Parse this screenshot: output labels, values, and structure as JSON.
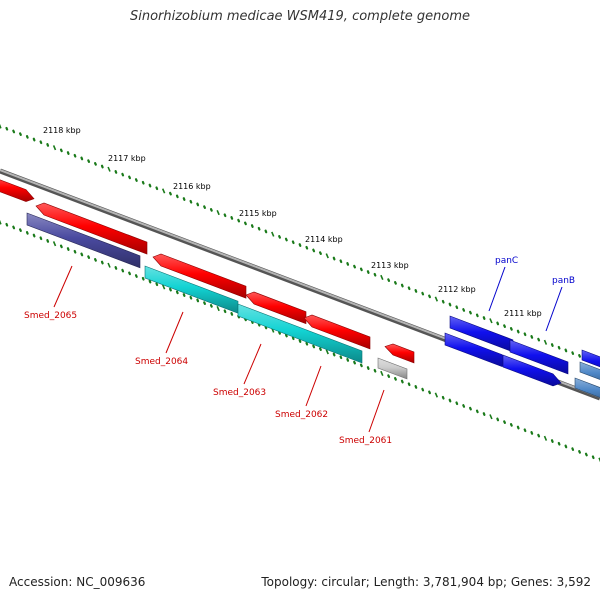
{
  "title": "Sinorhizobium medicae WSM419, complete genome",
  "footer": {
    "accession": "Accession: NC_009636",
    "summary": "Topology: circular; Length: 3,781,904 bp; Genes: 3,592"
  },
  "colors": {
    "backbone": "#888888",
    "tick": "#1a7a1a",
    "forward_gene": "#ff0000",
    "reverse_gene_cyan": "#12d3d3",
    "reverse_gene_navy": "#4a4aa0",
    "gray_gene": "#cccccc",
    "blue_gene": "#1010ee",
    "steel_gene": "#4d86c6",
    "label_red": "#cc0000",
    "label_blue": "#0000cc"
  },
  "scale": {
    "ticks": [
      "2118 kbp",
      "2117 kbp",
      "2116 kbp",
      "2115 kbp",
      "2114 kbp",
      "2113 kbp",
      "2112 kbp",
      "2111 kbp"
    ]
  },
  "gene_labels": [
    {
      "id": "smed-2065",
      "text": "Smed_2065",
      "color": "#cc0000"
    },
    {
      "id": "smed-2064",
      "text": "Smed_2064",
      "color": "#cc0000"
    },
    {
      "id": "smed-2063",
      "text": "Smed_2063",
      "color": "#cc0000"
    },
    {
      "id": "smed-2062",
      "text": "Smed_2062",
      "color": "#cc0000"
    },
    {
      "id": "smed-2061",
      "text": "Smed_2061",
      "color": "#cc0000"
    },
    {
      "id": "panc",
      "text": "panC",
      "color": "#0000cc"
    },
    {
      "id": "panb",
      "text": "panB",
      "color": "#0000cc"
    }
  ]
}
